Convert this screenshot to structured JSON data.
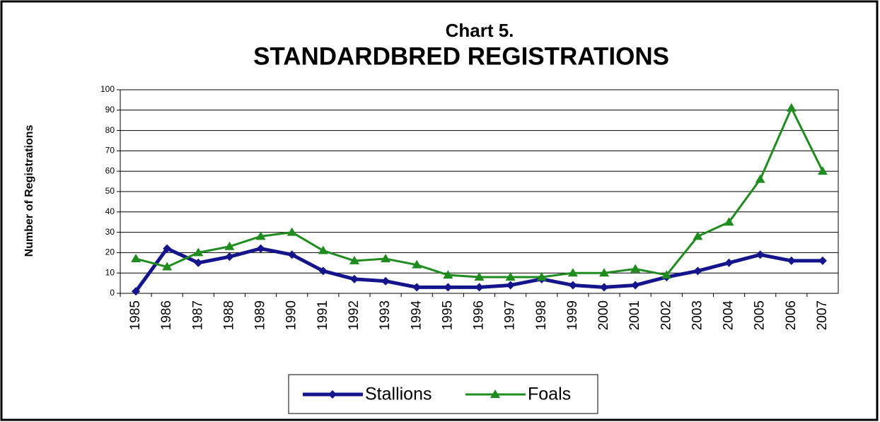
{
  "chart_data": {
    "type": "line",
    "title": "Chart 5.",
    "subtitle": "STANDARDBRED REGISTRATIONS",
    "y_label": "Number of Registrations",
    "categories": [
      "1985",
      "1986",
      "1987",
      "1988",
      "1989",
      "1990",
      "1991",
      "1992",
      "1993",
      "1994",
      "1995",
      "1996",
      "1997",
      "1998",
      "1999",
      "2000",
      "2001",
      "2002",
      "2003",
      "2004",
      "2005",
      "2006",
      "2007"
    ],
    "series": [
      {
        "name": "Stallions",
        "color": "#14148c",
        "marker": "diamond",
        "values": [
          1,
          22,
          15,
          18,
          22,
          19,
          11,
          7,
          6,
          3,
          3,
          3,
          4,
          7,
          4,
          3,
          4,
          8,
          11,
          15,
          19,
          16,
          16
        ]
      },
      {
        "name": "Foals",
        "color": "#1e8c1e",
        "marker": "triangle",
        "values": [
          17,
          13,
          20,
          23,
          28,
          30,
          21,
          16,
          17,
          14,
          9,
          8,
          8,
          8,
          10,
          10,
          12,
          9,
          28,
          35,
          56,
          91,
          60
        ]
      }
    ],
    "ylim": [
      0,
      100
    ],
    "yticks": [
      0,
      10,
      20,
      30,
      40,
      50,
      60,
      70,
      80,
      90,
      100
    ],
    "grid": true,
    "legend": "bottom"
  }
}
